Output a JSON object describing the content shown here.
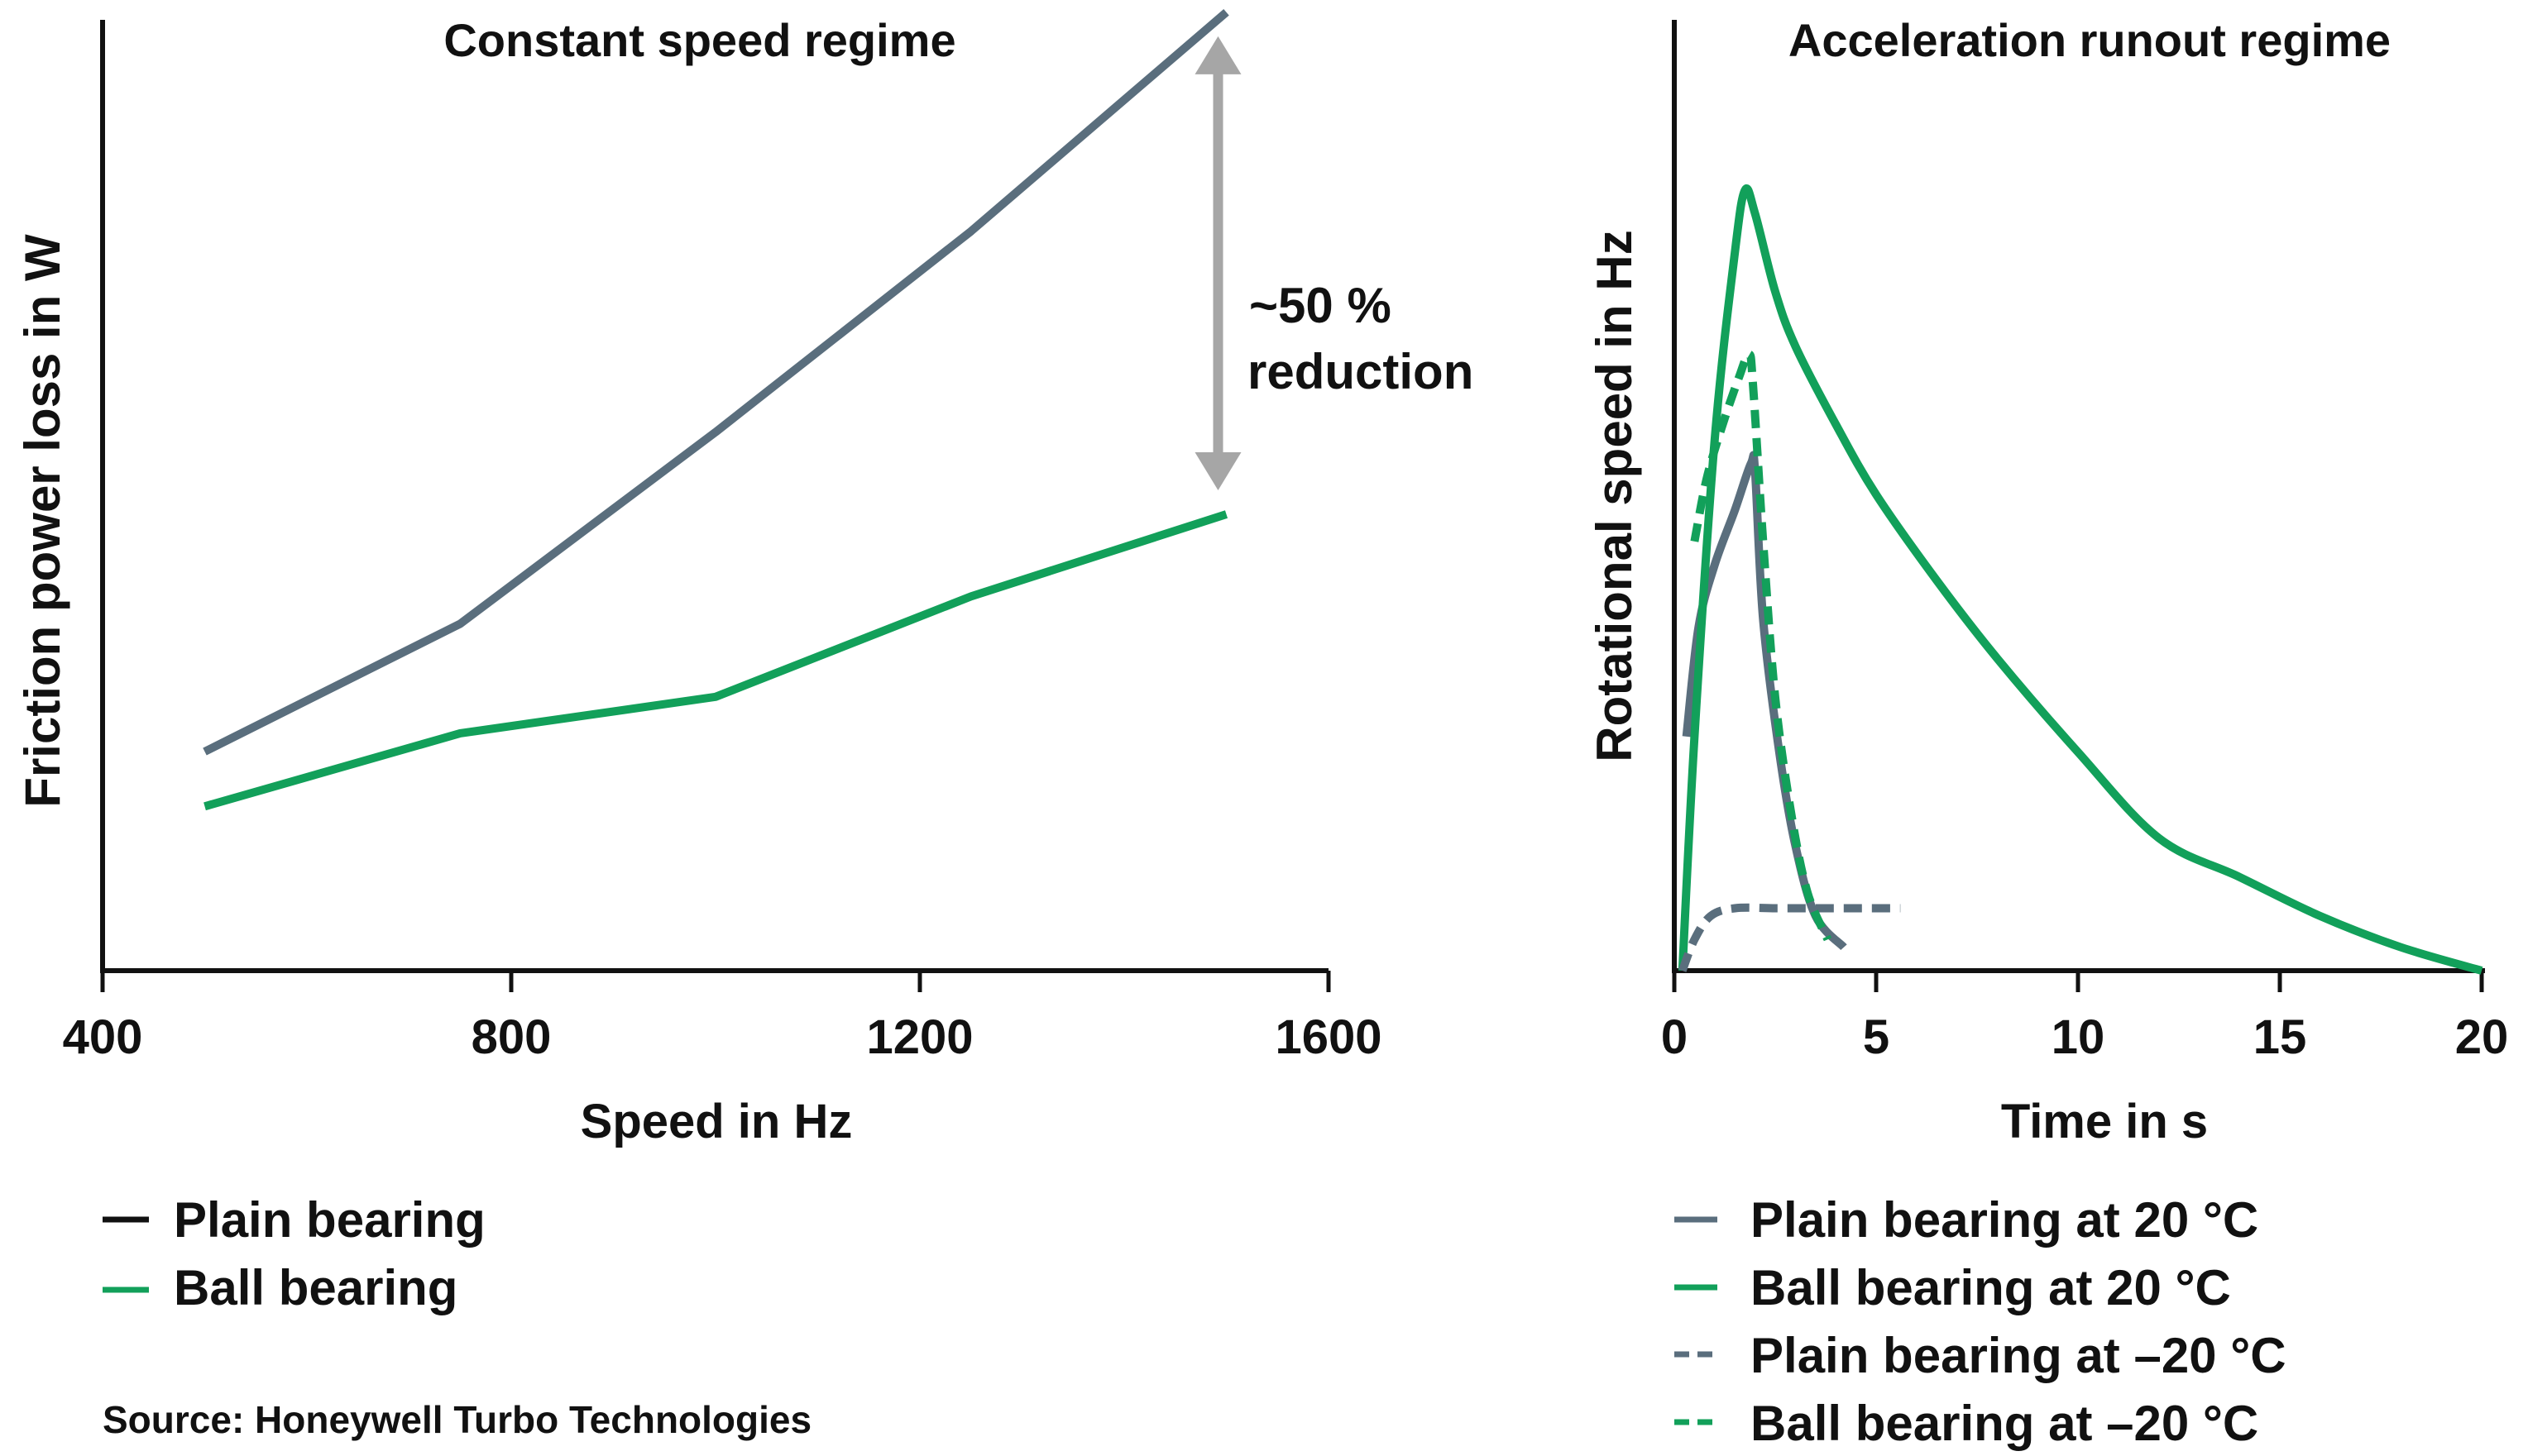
{
  "colors": {
    "plain": "#5a6e7d",
    "ball": "#12a05a",
    "arrow": "#a6a6a6",
    "axis": "#111111",
    "legend_plain_left": "#111111"
  },
  "source": "Source: Honeywell Turbo Technologies",
  "chart_data": [
    {
      "type": "line",
      "title": "Constant speed regime",
      "xlabel": "Speed in Hz",
      "ylabel": "Friction power loss in W",
      "xlim": [
        400,
        1600
      ],
      "ylim": [
        0,
        100
      ],
      "xticks": [
        "400",
        "800",
        "1200",
        "1600"
      ],
      "xtick_values": [
        400,
        800,
        1200,
        1600
      ],
      "series": [
        {
          "name": "Plain bearing",
          "style": "solid",
          "color_key": "plain",
          "x": [
            500,
            750,
            1000,
            1250,
            1500
          ],
          "y": [
            24,
            38,
            59,
            81,
            105
          ]
        },
        {
          "name": "Ball bearing",
          "style": "solid",
          "color_key": "ball",
          "x": [
            500,
            750,
            1000,
            1250,
            1500
          ],
          "y": [
            18,
            26,
            30,
            41,
            50
          ]
        }
      ],
      "annotation": {
        "line1": "~50 %",
        "line2": "reduction",
        "x": 1500,
        "y_from": 104,
        "y_to": 51
      },
      "legend": [
        {
          "label": "Plain bearing",
          "color_key": "legend_plain_left",
          "style": "solid"
        },
        {
          "label": "Ball bearing",
          "color_key": "ball",
          "style": "solid"
        }
      ]
    },
    {
      "type": "line",
      "title": "Acceleration runout regime",
      "xlabel": "Time in s",
      "ylabel": "Rotational speed in Hz",
      "xlim": [
        0,
        20
      ],
      "ylim": [
        0,
        100
      ],
      "xticks": [
        "0",
        "5",
        "10",
        "15",
        "20"
      ],
      "xtick_values": [
        0,
        5,
        10,
        15,
        20
      ],
      "series": [
        {
          "name": "Plain bearing at 20 °C",
          "style": "solid",
          "color_key": "plain",
          "x": [
            0.3,
            0.6,
            1.0,
            1.5,
            1.9,
            2.0,
            2.2,
            2.6,
            3.0,
            3.5,
            4.2
          ],
          "y": [
            30,
            44,
            52,
            59,
            65,
            64,
            45,
            28,
            16,
            7,
            3
          ]
        },
        {
          "name": "Ball bearing at 20 °C",
          "style": "solid",
          "color_key": "ball",
          "x": [
            0.2,
            0.5,
            1.0,
            1.5,
            1.75,
            2.0,
            2.5,
            3.0,
            4.0,
            5.0,
            6.5,
            8.0,
            10.0,
            12.0,
            14.0,
            16.0,
            18.0,
            20.0
          ],
          "y": [
            0,
            30,
            68,
            92,
            100,
            97,
            87,
            80,
            70,
            61,
            50,
            40,
            28,
            17,
            12,
            7,
            3,
            0
          ]
        },
        {
          "name": "Plain bearing at –20 °C",
          "style": "dashed",
          "color_key": "plain",
          "x": [
            0.2,
            0.5,
            0.9,
            1.5,
            2.5,
            3.5,
            4.5,
            5.6
          ],
          "y": [
            0,
            4,
            7,
            8,
            8,
            8,
            8,
            8
          ]
        },
        {
          "name": "Ball bearing at –20 °C",
          "style": "dashed",
          "color_key": "ball",
          "x": [
            0.5,
            0.8,
            1.2,
            1.6,
            1.85,
            1.95,
            2.2,
            2.5,
            2.9,
            3.3,
            3.8
          ],
          "y": [
            55,
            63,
            70,
            76,
            79,
            75,
            55,
            35,
            20,
            10,
            4
          ]
        }
      ],
      "legend": [
        {
          "label": "Plain bearing at 20 °C",
          "color_key": "plain",
          "style": "solid"
        },
        {
          "label": "Ball bearing at 20 °C",
          "color_key": "ball",
          "style": "solid"
        },
        {
          "label": "Plain bearing at –20 °C",
          "color_key": "plain",
          "style": "dashed"
        },
        {
          "label": "Ball bearing at –20 °C",
          "color_key": "ball",
          "style": "dashed"
        }
      ]
    }
  ]
}
